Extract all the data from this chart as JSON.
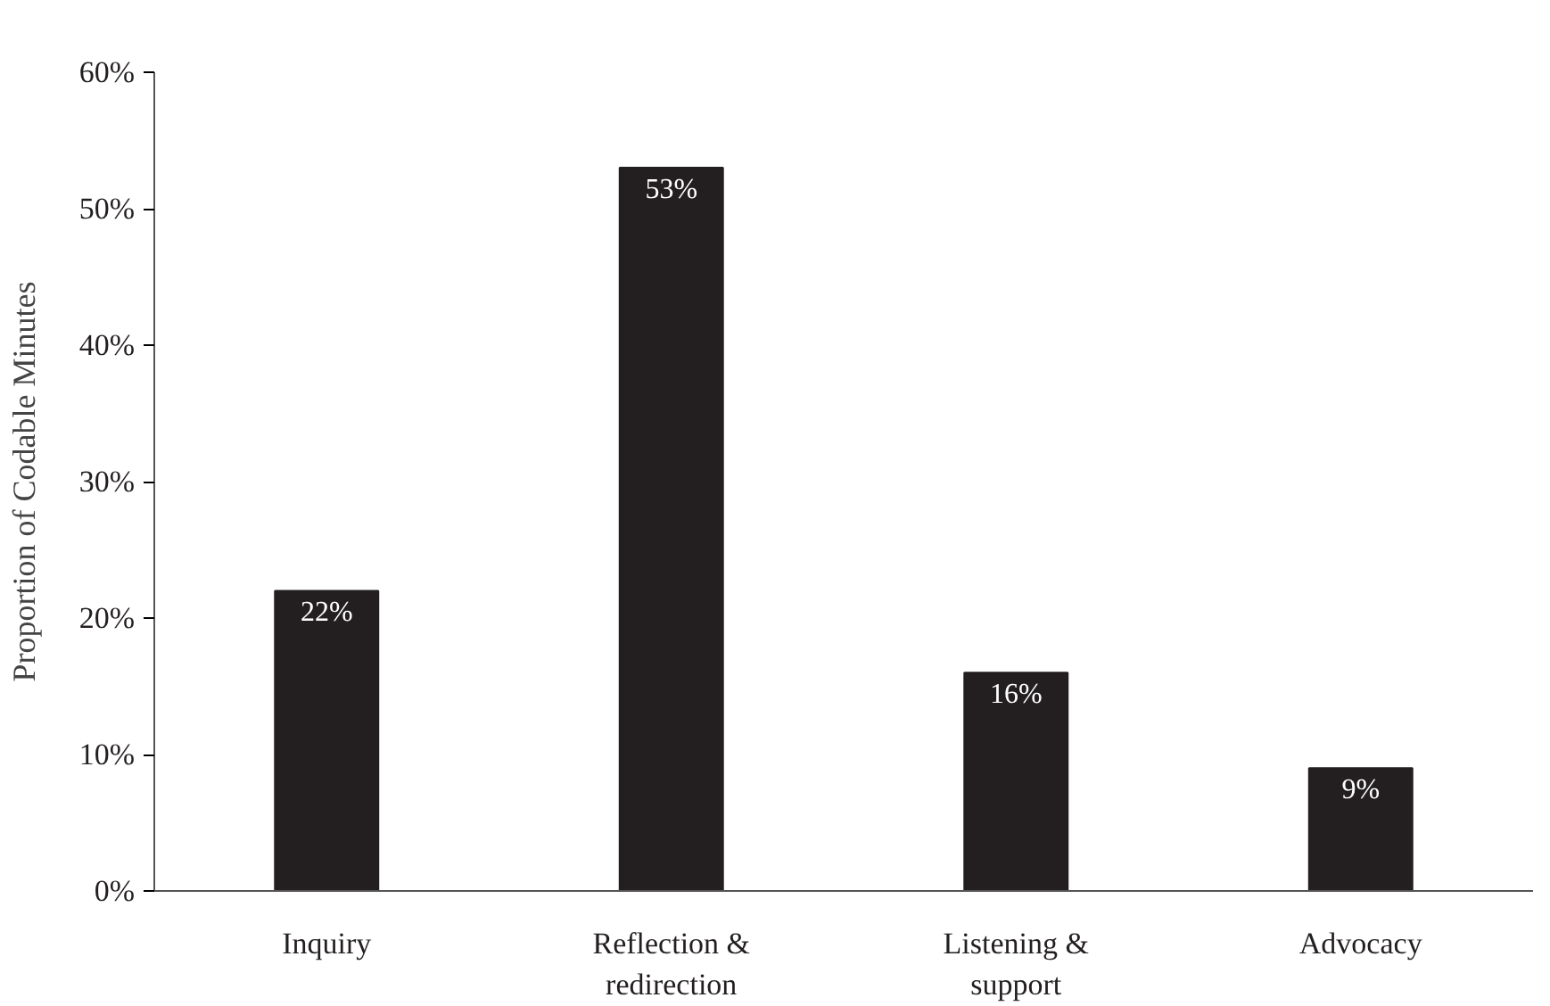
{
  "chart_data": {
    "type": "bar",
    "ylabel": "Proportion of Codable Minutes",
    "categories": [
      "Inquiry",
      "Reflection & redirection",
      "Listening & support",
      "Advocacy"
    ],
    "values": [
      22,
      53,
      16,
      9
    ],
    "color": "#231f20",
    "value_labels": [
      "22%",
      "53%",
      "16%",
      "9%"
    ],
    "ylim": [
      0,
      60
    ],
    "yticks": [
      {
        "value": 0,
        "label": "0%"
      },
      {
        "value": 10,
        "label": "10%"
      },
      {
        "value": 20,
        "label": "20%"
      },
      {
        "value": 30,
        "label": "30%"
      },
      {
        "value": 40,
        "label": "40%"
      },
      {
        "value": 50,
        "label": "50%"
      },
      {
        "value": 60,
        "label": "60%"
      }
    ],
    "grid": false
  }
}
